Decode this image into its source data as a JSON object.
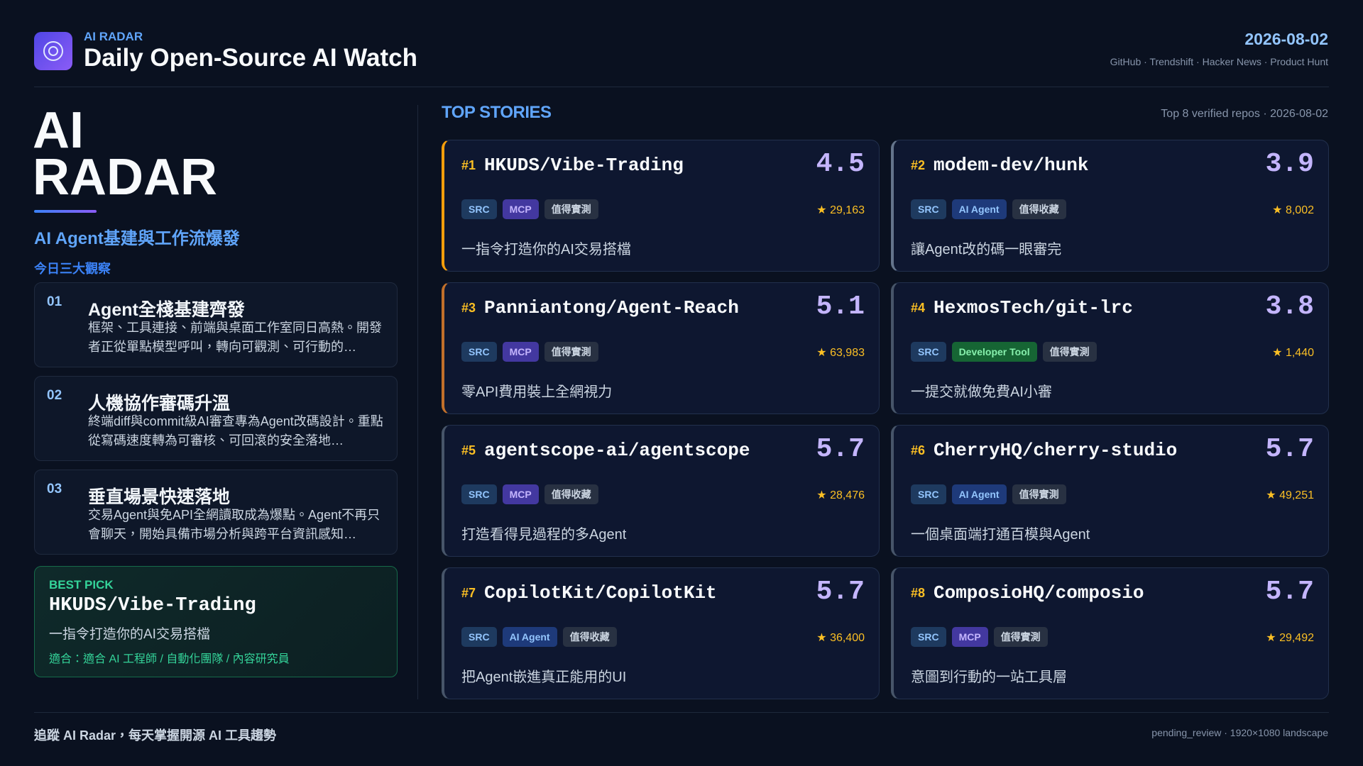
{
  "header": {
    "kicker": "AI RADAR",
    "title": "Daily Open-Source AI Watch",
    "date": "2026-08-02",
    "sources": "GitHub · Trendshift · Hacker News · Product Hunt"
  },
  "sidebar": {
    "brand_line1": "AI",
    "brand_line2": "RADAR",
    "headline": "AI Agent基建與工作流爆發",
    "section_label": "今日三大觀察",
    "insights": [
      {
        "number": "01",
        "title": "Agent全棧基建齊發",
        "body": "框架、工具連接、前端與桌面工作室同日高熱。開發者正從單點模型呼叫，轉向可觀測、可行動的…"
      },
      {
        "number": "02",
        "title": "人機協作審碼升溫",
        "body": "終端diff與commit級AI審查專為Agent改碼設計。重點從寫碼速度轉為可審核、可回滾的安全落地…"
      },
      {
        "number": "03",
        "title": "垂直場景快速落地",
        "body": "交易Agent與免API全網讀取成為爆點。Agent不再只會聊天，開始具備市場分析與跨平台資訊感知…"
      }
    ],
    "best_pick": {
      "label": "BEST PICK",
      "repo": "HKUDS/Vibe-Trading",
      "description": "一指令打造你的AI交易搭檔",
      "audience": "適合：適合 AI 工程師 / 自動化團隊 / 內容研究員"
    }
  },
  "stories": {
    "heading": "TOP STORIES",
    "meta": "Top 8 verified repos · 2026-08-02",
    "items": [
      {
        "rank": "#1",
        "repo": "HKUDS/Vibe-Trading",
        "score": 4.5,
        "stars": "29,163",
        "description": "一指令打造你的AI交易搭檔",
        "accent": "#f59e0b",
        "tags": [
          {
            "text": "SRC",
            "color": "#93c5fd",
            "bg": "#1e3a5f"
          },
          {
            "text": "MCP",
            "color": "#c4b5fd",
            "bg": "#4338a0"
          },
          {
            "text": "值得實測",
            "color": "#cbd5e1",
            "bg": "#283142"
          }
        ]
      },
      {
        "rank": "#2",
        "repo": "modem-dev/hunk",
        "score": 3.9,
        "stars": "8,002",
        "description": "讓Agent改的碼一眼審完",
        "accent": "#64748b",
        "tags": [
          {
            "text": "SRC",
            "color": "#93c5fd",
            "bg": "#1e3a5f"
          },
          {
            "text": "AI Agent",
            "color": "#93c5fd",
            "bg": "#1e3a7a"
          },
          {
            "text": "值得收藏",
            "color": "#cbd5e1",
            "bg": "#283142"
          }
        ]
      },
      {
        "rank": "#3",
        "repo": "Panniantong/Agent-Reach",
        "score": 5.1,
        "stars": "63,983",
        "description": "零API費用裝上全網視力",
        "accent": "#c2702a",
        "tags": [
          {
            "text": "SRC",
            "color": "#93c5fd",
            "bg": "#1e3a5f"
          },
          {
            "text": "MCP",
            "color": "#c4b5fd",
            "bg": "#4338a0"
          },
          {
            "text": "值得實測",
            "color": "#cbd5e1",
            "bg": "#283142"
          }
        ]
      },
      {
        "rank": "#4",
        "repo": "HexmosTech/git-lrc",
        "score": 3.8,
        "stars": "1,440",
        "description": "一提交就做免費AI小審",
        "accent": "#475569",
        "tags": [
          {
            "text": "SRC",
            "color": "#93c5fd",
            "bg": "#1e3a5f"
          },
          {
            "text": "Developer Tool",
            "color": "#86efac",
            "bg": "#166534"
          },
          {
            "text": "值得實測",
            "color": "#cbd5e1",
            "bg": "#283142"
          }
        ]
      },
      {
        "rank": "#5",
        "repo": "agentscope-ai/agentscope",
        "score": 5.7,
        "stars": "28,476",
        "description": "打造看得見過程的多Agent",
        "accent": "#475569",
        "tags": [
          {
            "text": "SRC",
            "color": "#93c5fd",
            "bg": "#1e3a5f"
          },
          {
            "text": "MCP",
            "color": "#c4b5fd",
            "bg": "#4338a0"
          },
          {
            "text": "值得收藏",
            "color": "#cbd5e1",
            "bg": "#283142"
          }
        ]
      },
      {
        "rank": "#6",
        "repo": "CherryHQ/cherry-studio",
        "score": 5.7,
        "stars": "49,251",
        "description": "一個桌面端打通百模與Agent",
        "accent": "#475569",
        "tags": [
          {
            "text": "SRC",
            "color": "#93c5fd",
            "bg": "#1e3a5f"
          },
          {
            "text": "AI Agent",
            "color": "#93c5fd",
            "bg": "#1e3a7a"
          },
          {
            "text": "值得實測",
            "color": "#cbd5e1",
            "bg": "#283142"
          }
        ]
      },
      {
        "rank": "#7",
        "repo": "CopilotKit/CopilotKit",
        "score": 5.7,
        "stars": "36,400",
        "description": "把Agent嵌進真正能用的UI",
        "accent": "#475569",
        "tags": [
          {
            "text": "SRC",
            "color": "#93c5fd",
            "bg": "#1e3a5f"
          },
          {
            "text": "AI Agent",
            "color": "#93c5fd",
            "bg": "#1e3a7a"
          },
          {
            "text": "值得收藏",
            "color": "#cbd5e1",
            "bg": "#283142"
          }
        ]
      },
      {
        "rank": "#8",
        "repo": "ComposioHQ/composio",
        "score": 5.7,
        "stars": "29,492",
        "description": "意圖到行動的一站工具層",
        "accent": "#475569",
        "tags": [
          {
            "text": "SRC",
            "color": "#93c5fd",
            "bg": "#1e3a5f"
          },
          {
            "text": "MCP",
            "color": "#c4b5fd",
            "bg": "#4338a0"
          },
          {
            "text": "值得實測",
            "color": "#cbd5e1",
            "bg": "#283142"
          }
        ]
      }
    ]
  },
  "footer": {
    "tagline": "追蹤 AI Radar，每天掌握開源 AI 工具趨勢",
    "status": "pending_review · 1920×1080 landscape"
  }
}
